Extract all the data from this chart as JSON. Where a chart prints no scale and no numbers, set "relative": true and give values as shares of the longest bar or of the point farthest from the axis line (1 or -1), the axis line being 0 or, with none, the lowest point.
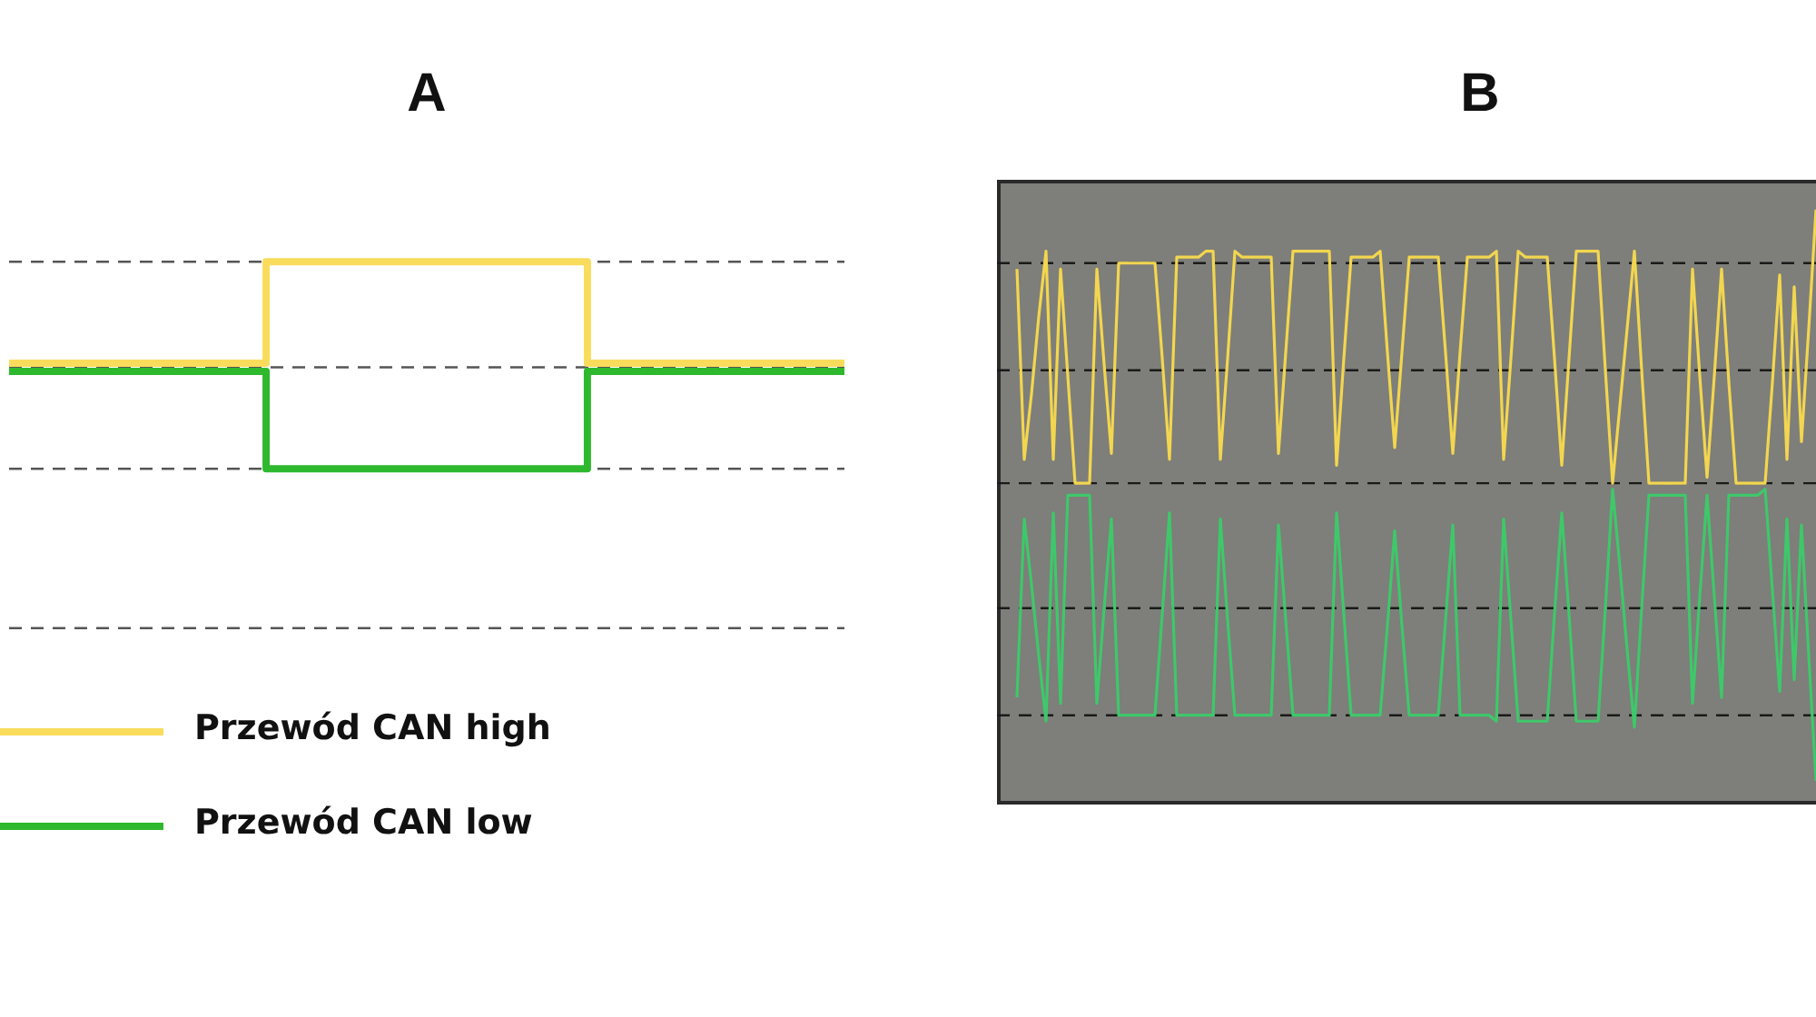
{
  "chart_data": [
    {
      "type": "step",
      "title": "A",
      "relative": true,
      "legend": "bottom left",
      "categories": [
        null,
        null,
        null,
        null,
        null,
        null,
        null,
        null,
        null,
        null,
        null,
        null,
        null,
        null
      ],
      "series": [
        {
          "name": "Przewód CAN high",
          "color": "#f9dc5c",
          "values": [
            0.51,
            0.51,
            0.51,
            0.51,
            1,
            1,
            1,
            1,
            1,
            0.51,
            0.51,
            0.51,
            0.51,
            0.51
          ]
        },
        {
          "name": "Przewód CAN low",
          "color": "#2eb82e",
          "values": [
            0.47,
            0.47,
            0.47,
            0.47,
            0,
            0,
            0,
            0,
            0,
            0.47,
            0.47,
            0.47,
            0.47,
            0.47
          ]
        }
      ],
      "ref_lines": [
        {
          "axis": "y",
          "value": 1,
          "color": "#555555",
          "line_style": "dashed"
        },
        {
          "axis": "y",
          "value": 0.49,
          "color": "#555555",
          "line_style": "dashed"
        },
        {
          "axis": "y",
          "value": 0,
          "color": "#555555",
          "line_style": "dashed"
        },
        {
          "axis": "y",
          "value": -0.77,
          "color": "#555555",
          "line_style": "dashed"
        }
      ]
    },
    {
      "type": "line",
      "title": "B",
      "relative": true,
      "categories": [
        null,
        null,
        null,
        null,
        null,
        null,
        null,
        null,
        null,
        null,
        null,
        null,
        null,
        null,
        null,
        null,
        null,
        null,
        null,
        null,
        null,
        null,
        null,
        null,
        null,
        null,
        null,
        null,
        null,
        null,
        null,
        null,
        null,
        null,
        null,
        null,
        null,
        null,
        null,
        null,
        null,
        null,
        null,
        null,
        null,
        null,
        null,
        null,
        null,
        null,
        null,
        null,
        null,
        null,
        null,
        null,
        null,
        null,
        null,
        null,
        null,
        null,
        null,
        null,
        null,
        null,
        null,
        null,
        null,
        null,
        null,
        null,
        null,
        null,
        null,
        null,
        null,
        null,
        null,
        null,
        null,
        null,
        null,
        null,
        null,
        null,
        null,
        null,
        null,
        null,
        null,
        null,
        null,
        null,
        null,
        null,
        null,
        null,
        null,
        null,
        null,
        null,
        null,
        null,
        null,
        null,
        null,
        null,
        null,
        null,
        null
      ],
      "series": [
        {
          "color": "#f2d64f",
          "values": [
            0.9,
            0.58,
            0.69,
            0.82,
            0.93,
            0.58,
            0.9,
            0.72,
            0.54,
            0.54,
            0.54,
            0.9,
            0.74,
            0.59,
            0.91,
            0.91,
            0.91,
            0.91,
            0.91,
            0.91,
            0.75,
            0.58,
            0.92,
            0.92,
            0.92,
            0.92,
            0.93,
            0.93,
            0.58,
            0.75,
            0.93,
            0.92,
            0.92,
            0.92,
            0.92,
            0.92,
            0.59,
            0.76,
            0.93,
            0.93,
            0.93,
            0.93,
            0.93,
            0.93,
            0.57,
            0.75,
            0.92,
            0.92,
            0.92,
            0.92,
            0.93,
            0.76,
            0.6,
            0.76,
            0.92,
            0.92,
            0.92,
            0.92,
            0.92,
            0.76,
            0.59,
            0.76,
            0.92,
            0.92,
            0.92,
            0.92,
            0.93,
            0.58,
            0.75,
            0.93,
            0.92,
            0.92,
            0.92,
            0.92,
            0.75,
            0.57,
            0.75,
            0.93,
            0.93,
            0.93,
            0.93,
            0.73,
            0.54,
            0.67,
            0.8,
            0.93,
            0.73,
            0.54,
            0.54,
            0.54,
            0.54,
            0.54,
            0.54,
            0.9,
            0.72,
            0.55,
            0.72,
            0.9,
            0.71,
            0.54,
            0.54,
            0.54,
            0.54,
            0.54,
            0.71,
            0.89,
            0.58,
            0.87,
            0.61,
            0.8,
            1
          ]
        },
        {
          "color": "#3ec86a",
          "values": [
            0.18,
            0.48,
            0.37,
            0.25,
            0.14,
            0.49,
            0.17,
            0.52,
            0.52,
            0.52,
            0.52,
            0.17,
            0.33,
            0.48,
            0.15,
            0.15,
            0.15,
            0.15,
            0.15,
            0.15,
            0.32,
            0.49,
            0.15,
            0.15,
            0.15,
            0.15,
            0.15,
            0.15,
            0.48,
            0.31,
            0.15,
            0.15,
            0.15,
            0.15,
            0.15,
            0.15,
            0.47,
            0.31,
            0.15,
            0.15,
            0.15,
            0.15,
            0.15,
            0.15,
            0.49,
            0.32,
            0.15,
            0.15,
            0.15,
            0.15,
            0.15,
            0.3,
            0.46,
            0.3,
            0.15,
            0.15,
            0.15,
            0.15,
            0.15,
            0.31,
            0.47,
            0.15,
            0.15,
            0.15,
            0.15,
            0.15,
            0.14,
            0.48,
            0.31,
            0.14,
            0.14,
            0.14,
            0.14,
            0.14,
            0.32,
            0.49,
            0.32,
            0.14,
            0.14,
            0.14,
            0.14,
            0.33,
            0.53,
            0.4,
            0.26,
            0.13,
            0.33,
            0.52,
            0.52,
            0.52,
            0.52,
            0.52,
            0.52,
            0.17,
            0.35,
            0.52,
            0.35,
            0.18,
            0.52,
            0.52,
            0.52,
            0.52,
            0.52,
            0.53,
            0.36,
            0.19,
            0.48,
            0.21,
            0.47,
            0.25,
            0.04
          ]
        }
      ],
      "ref_lines": [
        {
          "axis": "y",
          "value": 0.91,
          "color": "#1a1a1a",
          "line_style": "dashed"
        },
        {
          "axis": "y",
          "value": 0.73,
          "color": "#1a1a1a",
          "line_style": "dashed"
        },
        {
          "axis": "y",
          "value": 0.54,
          "color": "#1a1a1a",
          "line_style": "dashed"
        },
        {
          "axis": "y",
          "value": 0.33,
          "color": "#1a1a1a",
          "line_style": "dashed"
        },
        {
          "axis": "y",
          "value": 0.15,
          "color": "#1a1a1a",
          "line_style": "dashed"
        }
      ]
    }
  ]
}
